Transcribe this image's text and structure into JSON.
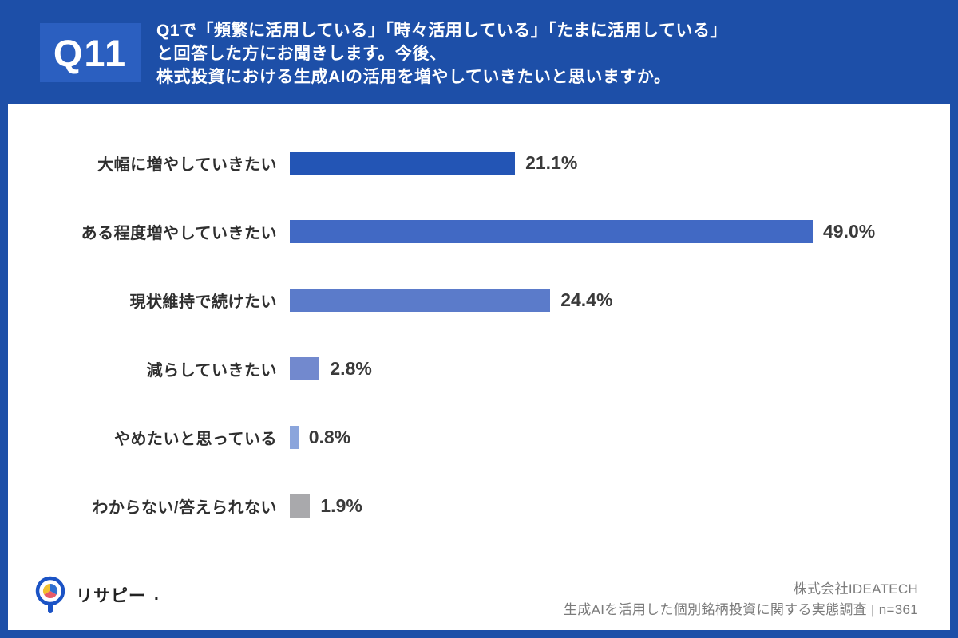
{
  "header": {
    "badge": "Q11",
    "question": "Q1で「頻繁に活用している」「時々活用している」「たまに活用している」\nと回答した方にお聞きします。今後、\n株式投資における生成AIの活用を増やしていきたいと思いますか。"
  },
  "chart_data": {
    "type": "bar",
    "orientation": "horizontal",
    "title": "今後、株式投資における生成AIの活用を増やしていきたいと思いますか。",
    "categories": [
      "大幅に増やしていきたい",
      "ある程度増やしていきたい",
      "現状維持で続けたい",
      "減らしていきたい",
      "やめたいと思っている",
      "わからない/答えられない"
    ],
    "values": [
      21.1,
      49.0,
      24.4,
      2.8,
      0.8,
      1.9
    ],
    "value_labels": [
      "21.1%",
      "49.0%",
      "24.4%",
      "2.8%",
      "0.8%",
      "1.9%"
    ],
    "bar_colors": [
      "#2355b5",
      "#4169c4",
      "#5b7bca",
      "#7289ce",
      "#8ba5dc",
      "#a9a9ac"
    ],
    "unit": "%",
    "xlim": [
      0,
      52
    ],
    "grid": false,
    "legend": false,
    "n": 361
  },
  "footer": {
    "logo_text": "リサピー",
    "logo_dot": ".",
    "company": "株式会社IDEATECH",
    "survey": "生成AIを活用した個別銘柄投資に関する実態調査 | n=361"
  },
  "colors": {
    "frame_blue": "#1d4fa8",
    "badge_blue": "#2b5fc0",
    "panel_white": "#ffffff",
    "text_dark": "#2f2f2f",
    "footer_gray": "#7b7b7b"
  }
}
